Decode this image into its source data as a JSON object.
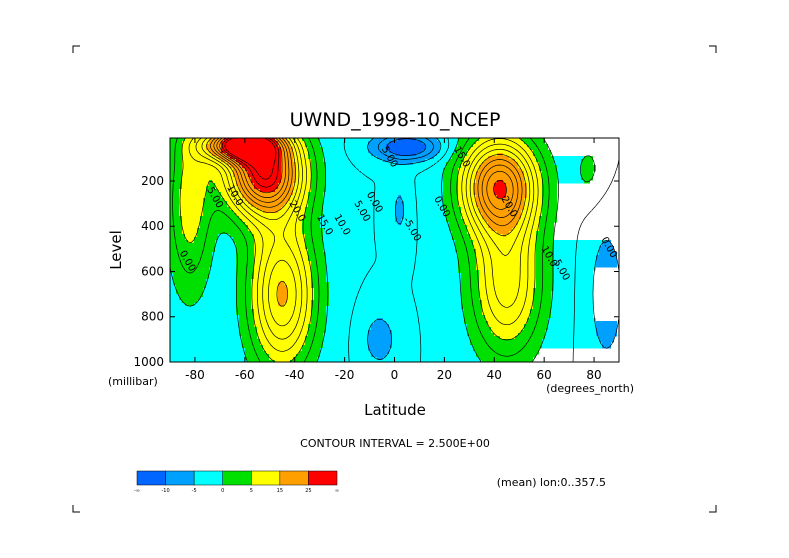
{
  "chart_data": {
    "type": "heatmap",
    "title": "UWND_1998-10_NCEP",
    "xlabel": "Latitude",
    "ylabel": "Level",
    "x_unit": "(degrees_north)",
    "y_unit": "(millibar)",
    "xlim": [
      -90,
      90
    ],
    "ylim": [
      1000,
      10
    ],
    "x_ticks": [
      -80,
      -60,
      -40,
      -20,
      0,
      20,
      40,
      60,
      80
    ],
    "x_tick_labels": [
      "-80",
      "-60",
      "-40",
      "-20",
      "0",
      "20",
      "40",
      "60",
      "80"
    ],
    "y_ticks": [
      200,
      400,
      600,
      800,
      1000
    ],
    "y_tick_labels": [
      "200",
      "400",
      "600",
      "800",
      "1000"
    ],
    "contour_interval_text": "CONTOUR INTERVAL = 2.500E+00",
    "footnote": "(mean) lon:0..357.5",
    "contour_labels": [
      {
        "text": "0.00",
        "lat": -84,
        "lev": 560
      },
      {
        "text": "5.00",
        "lat": -73,
        "lev": 280
      },
      {
        "text": "10.0",
        "lat": -65,
        "lev": 270
      },
      {
        "text": "20.0",
        "lat": -40,
        "lev": 340
      },
      {
        "text": "15.0",
        "lat": -29,
        "lev": 400
      },
      {
        "text": "10.0",
        "lat": -22,
        "lev": 400
      },
      {
        "text": "5.00",
        "lat": -14,
        "lev": 340
      },
      {
        "text": "0.00",
        "lat": -9,
        "lev": 300
      },
      {
        "text": "5.00",
        "lat": -3,
        "lev": 100
      },
      {
        "text": "-5.00",
        "lat": 6,
        "lev": 420
      },
      {
        "text": "0.00",
        "lat": 18,
        "lev": 320
      },
      {
        "text": "15.0",
        "lat": 26,
        "lev": 100
      },
      {
        "text": "20.0",
        "lat": 45,
        "lev": 320
      },
      {
        "text": "10.0",
        "lat": 61,
        "lev": 540
      },
      {
        "text": "5.00",
        "lat": 66,
        "lev": 600
      },
      {
        "text": "0.00",
        "lat": 85,
        "lev": 500
      }
    ],
    "colorbar": {
      "boundaries": [
        -30,
        -10,
        -5,
        0,
        5,
        15,
        25,
        30
      ],
      "tick_labels": [
        "-∞",
        "-10",
        "-5",
        "0",
        "5",
        "15",
        "25",
        "∞"
      ],
      "colors": [
        "#0066ff",
        "#00a0ff",
        "#00ffff",
        "#00e000",
        "#ffff00",
        "#ffa000",
        "#ff0000"
      ]
    }
  }
}
